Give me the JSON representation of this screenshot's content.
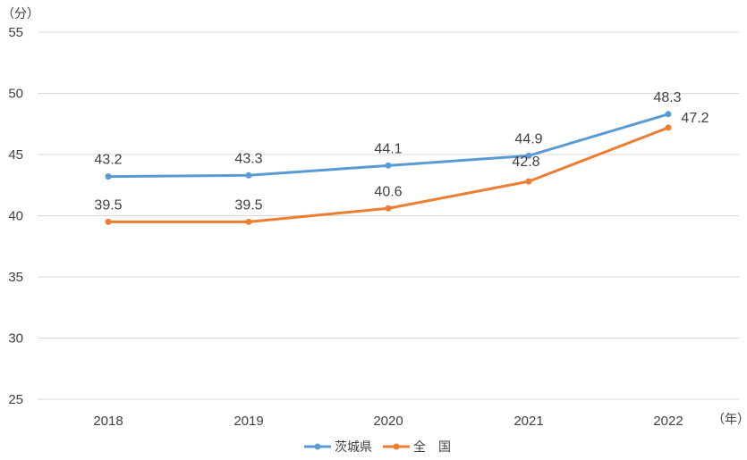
{
  "chart_data": {
    "type": "line",
    "title": "",
    "ylabel": "（分）",
    "xlabel": "（年）",
    "ylim": [
      25,
      55
    ],
    "yticks": [
      25,
      30,
      35,
      40,
      45,
      50,
      55
    ],
    "grid": true,
    "legend_position": "bottom",
    "categories": [
      "2018",
      "2019",
      "2020",
      "2021",
      "2022"
    ],
    "series": [
      {
        "name": "茨城県",
        "color": "#5B9BD5",
        "values": [
          43.2,
          43.3,
          44.1,
          44.9,
          48.3
        ],
        "labels": [
          "43.2",
          "43.3",
          "44.1",
          "44.9",
          "48.3"
        ]
      },
      {
        "name": "全　国",
        "color": "#ED7D31",
        "values": [
          39.5,
          39.5,
          40.6,
          42.8,
          47.2
        ],
        "labels": [
          "39.5",
          "39.5",
          "40.6",
          "42.8",
          "47.2"
        ]
      }
    ]
  }
}
